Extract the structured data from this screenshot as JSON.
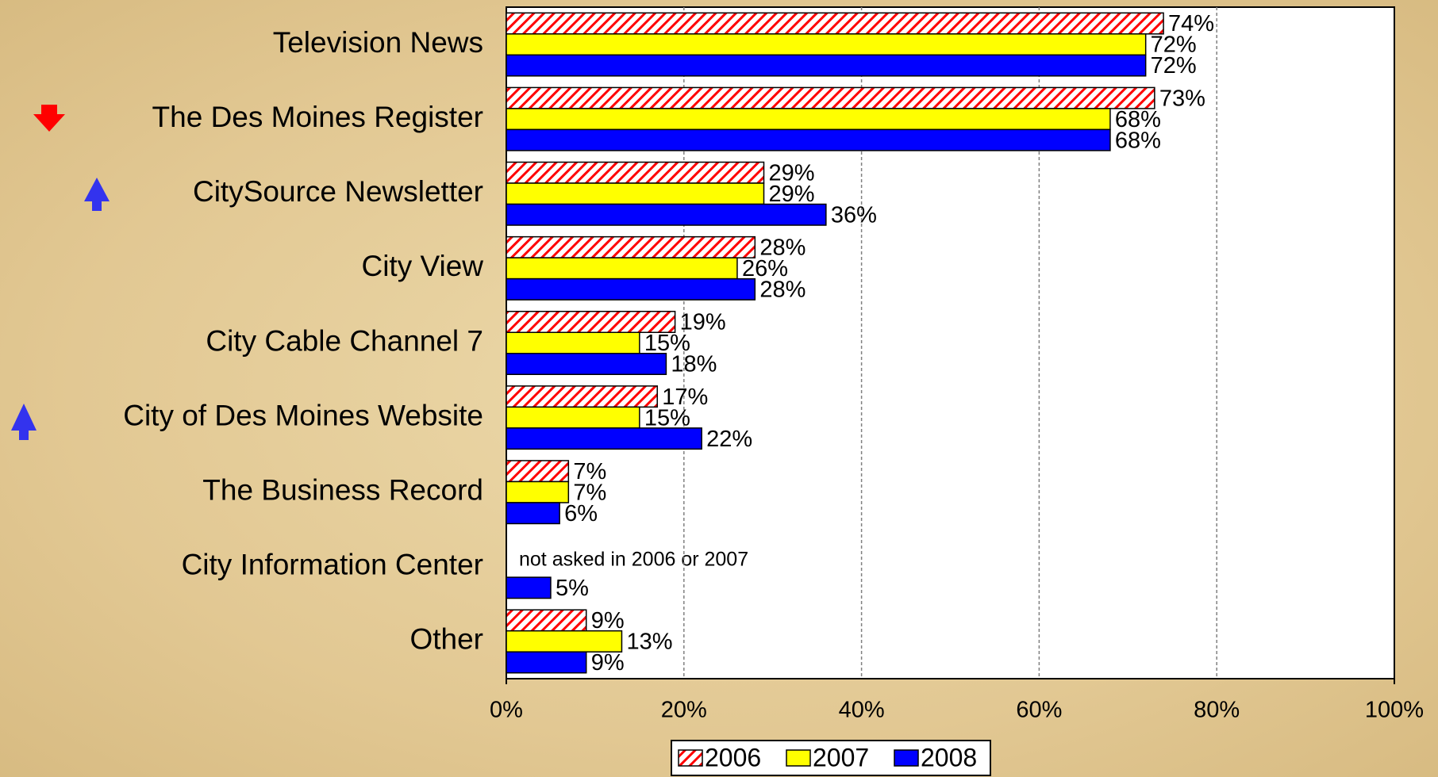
{
  "chart_data": {
    "type": "bar",
    "orientation": "horizontal",
    "categories": [
      "Television News",
      "The Des Moines Register",
      "CitySource Newsletter",
      "City View",
      "City Cable Channel 7",
      "City of Des Moines Website",
      "The Business Record",
      "City Information Center",
      "Other"
    ],
    "series": [
      {
        "name": "2006",
        "color": "#ff0000",
        "pattern": "hatch",
        "values": [
          74,
          73,
          29,
          28,
          19,
          17,
          7,
          null,
          9
        ],
        "value_labels": [
          "74%",
          "73%",
          "29%",
          "28%",
          "19%",
          "17%",
          "7%",
          null,
          "9%"
        ]
      },
      {
        "name": "2007",
        "color": "#ffff00",
        "values": [
          72,
          68,
          29,
          26,
          15,
          15,
          7,
          null,
          13
        ],
        "value_labels": [
          "72%",
          "68%",
          "29%",
          "26%",
          "15%",
          "15%",
          "7%",
          null,
          "13%"
        ]
      },
      {
        "name": "2008",
        "color": "#0000ff",
        "values": [
          72,
          68,
          36,
          28,
          18,
          22,
          6,
          5,
          9
        ],
        "value_labels": [
          "72%",
          "68%",
          "36%",
          "28%",
          "18%",
          "22%",
          "6%",
          "5%",
          "9%"
        ]
      }
    ],
    "annotations": [
      "not asked in 2006 or 2007"
    ],
    "xlim": [
      0,
      100
    ],
    "xticks": [
      {
        "value": 0,
        "label": "0%"
      },
      {
        "value": 20,
        "label": "20%"
      },
      {
        "value": 40,
        "label": "40%"
      },
      {
        "value": 60,
        "label": "60%"
      },
      {
        "value": 80,
        "label": "80%"
      },
      {
        "value": 100,
        "label": "100%"
      }
    ],
    "grid": true,
    "legend": "bottom"
  }
}
